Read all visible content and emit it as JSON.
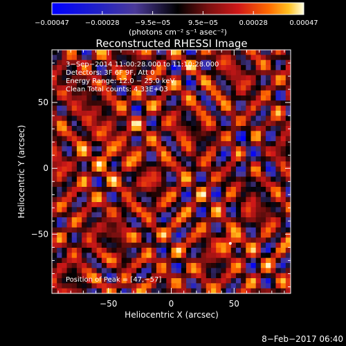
{
  "chart_data": {
    "type": "heatmap",
    "title": "Reconstructed RHESSI Image",
    "xlabel": "Heliocentric X (arcsec)",
    "ylabel": "Heliocentric Y (arcsec)",
    "xlim": [
      -95,
      95
    ],
    "ylim": [
      -95,
      90
    ],
    "xticks": [
      -50,
      0,
      50
    ],
    "yticks": [
      50,
      0,
      -50
    ],
    "xtick_labels": [
      "−50",
      "0",
      "50"
    ],
    "ytick_labels": [
      "50",
      "0",
      "−50"
    ],
    "colorbar": {
      "range": [
        -0.00047,
        0.00047
      ],
      "tick_labels": [
        "−0.00047",
        "−0.00028",
        "−9.5e−05",
        "9.5e−05",
        "0.00028",
        "0.00047"
      ],
      "unit_label": "(photons cm⁻² s⁻¹ asec⁻²)",
      "colors": [
        "#0000ff",
        "#2020c8",
        "#4b3a9a",
        "#000000",
        "#7a1010",
        "#d01818",
        "#ff6a00",
        "#ffc020",
        "#ffffe0"
      ]
    },
    "annotations": [
      "3−Sep−2014 11:00:28.000 to 11:10:28.000",
      "Detectors: 3F 6F 9F, Att 0",
      "Energy Range: 12.0 − 25.0 keV",
      "Clean     Total counts: 4.33E+03"
    ],
    "peak_label": "Position of Peak = [47,−57]",
    "peak": [
      47,
      -57
    ]
  },
  "footer": {
    "timestamp": "8−Feb−2017 06:40"
  }
}
